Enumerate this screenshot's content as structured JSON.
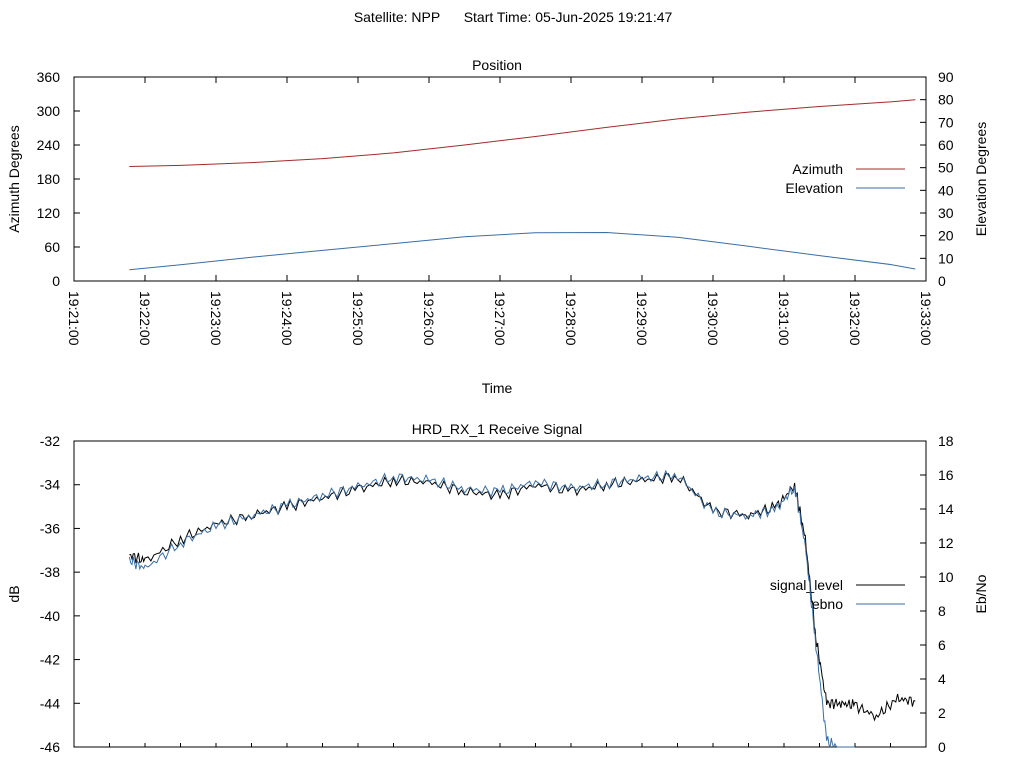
{
  "header": {
    "satellite": "Satellite: NPP",
    "start_time": "Start Time: 05-Jun-2025 19:21:47"
  },
  "chart_data": [
    {
      "type": "line",
      "title": "Position",
      "xlabel": "Time",
      "ylabel": "Azimuth Degrees",
      "y2label": "Elevation Degrees",
      "x_ticks": [
        "19:21:00",
        "19:22:00",
        "19:23:00",
        "19:24:00",
        "19:25:00",
        "19:26:00",
        "19:27:00",
        "19:28:00",
        "19:29:00",
        "19:30:00",
        "19:31:00",
        "19:32:00",
        "19:33:00"
      ],
      "y_ticks": [
        "0",
        "60",
        "120",
        "180",
        "240",
        "300",
        "360"
      ],
      "y2_ticks": [
        "0",
        "10",
        "20",
        "30",
        "40",
        "50",
        "60",
        "70",
        "80",
        "90"
      ],
      "xlim": [
        0,
        12
      ],
      "ylim": [
        0,
        360
      ],
      "y2lim": [
        0,
        90
      ],
      "legend": "right",
      "series": [
        {
          "name": "Azimuth",
          "axis": "y",
          "color": "#a52a2a",
          "x": [
            0.78,
            1.5,
            2.5,
            3.5,
            4.5,
            5.5,
            6.5,
            7.5,
            8.5,
            9.5,
            10.5,
            11.5,
            11.85
          ],
          "values": [
            202,
            204,
            209,
            216,
            226,
            240,
            255,
            271,
            286,
            298,
            308,
            316,
            320
          ]
        },
        {
          "name": "Elevation",
          "axis": "y2",
          "color": "#3a6ea5",
          "x": [
            0.78,
            1.5,
            2.5,
            3.5,
            4.5,
            5.5,
            6.5,
            7.5,
            8.5,
            9.5,
            10.5,
            11.5,
            11.85
          ],
          "values": [
            5.0,
            7.2,
            10.5,
            13.5,
            16.5,
            19.5,
            21.3,
            21.4,
            19.3,
            15.3,
            11.2,
            7.3,
            5.3
          ]
        }
      ]
    },
    {
      "type": "line",
      "title": "HRD_RX_1 Receive Signal",
      "xlabel": "",
      "ylabel": "dB",
      "y2label": "Eb/No",
      "y_ticks": [
        "-46",
        "-44",
        "-42",
        "-40",
        "-38",
        "-36",
        "-34",
        "-32"
      ],
      "y2_ticks": [
        "0",
        "2",
        "4",
        "6",
        "8",
        "10",
        "12",
        "14",
        "16",
        "18"
      ],
      "xlim": [
        0,
        12
      ],
      "ylim": [
        -46,
        -32
      ],
      "y2lim": [
        0,
        18
      ],
      "legend": "right",
      "series": [
        {
          "name": "signal_level",
          "axis": "y",
          "color": "#000000",
          "x": [
            0.78,
            1.0,
            1.5,
            2.0,
            2.5,
            3.0,
            3.5,
            4.0,
            4.5,
            5.0,
            5.5,
            6.0,
            6.5,
            7.0,
            7.5,
            8.0,
            8.5,
            9.0,
            9.5,
            9.9,
            10.15,
            10.3,
            10.45,
            10.6,
            10.8,
            11.0,
            11.3,
            11.6,
            11.85
          ],
          "values": [
            -37.2,
            -37.5,
            -36.5,
            -35.8,
            -35.4,
            -35.0,
            -34.6,
            -34.2,
            -33.8,
            -33.9,
            -34.3,
            -34.5,
            -34.0,
            -34.3,
            -34.0,
            -33.8,
            -33.6,
            -35.2,
            -35.4,
            -35.0,
            -34.0,
            -36.5,
            -41.0,
            -44.0,
            -44.0,
            -44.1,
            -44.6,
            -43.8,
            -43.9
          ]
        },
        {
          "name": "ebno",
          "axis": "y2",
          "color": "#3a6ea5",
          "x": [
            0.78,
            1.0,
            1.5,
            2.0,
            2.5,
            3.0,
            3.5,
            4.0,
            4.5,
            5.0,
            5.5,
            6.0,
            6.5,
            7.0,
            7.5,
            8.0,
            8.5,
            9.0,
            9.5,
            9.9,
            10.15,
            10.3,
            10.45,
            10.6,
            10.8,
            11.0
          ],
          "values": [
            11.0,
            10.5,
            12.0,
            13.0,
            13.6,
            14.2,
            14.8,
            15.3,
            15.9,
            15.7,
            15.2,
            15.0,
            15.6,
            15.2,
            15.5,
            15.8,
            16.0,
            13.8,
            13.6,
            14.0,
            15.3,
            11.8,
            6.0,
            0.4,
            -0.2,
            -0.5
          ]
        }
      ]
    }
  ]
}
